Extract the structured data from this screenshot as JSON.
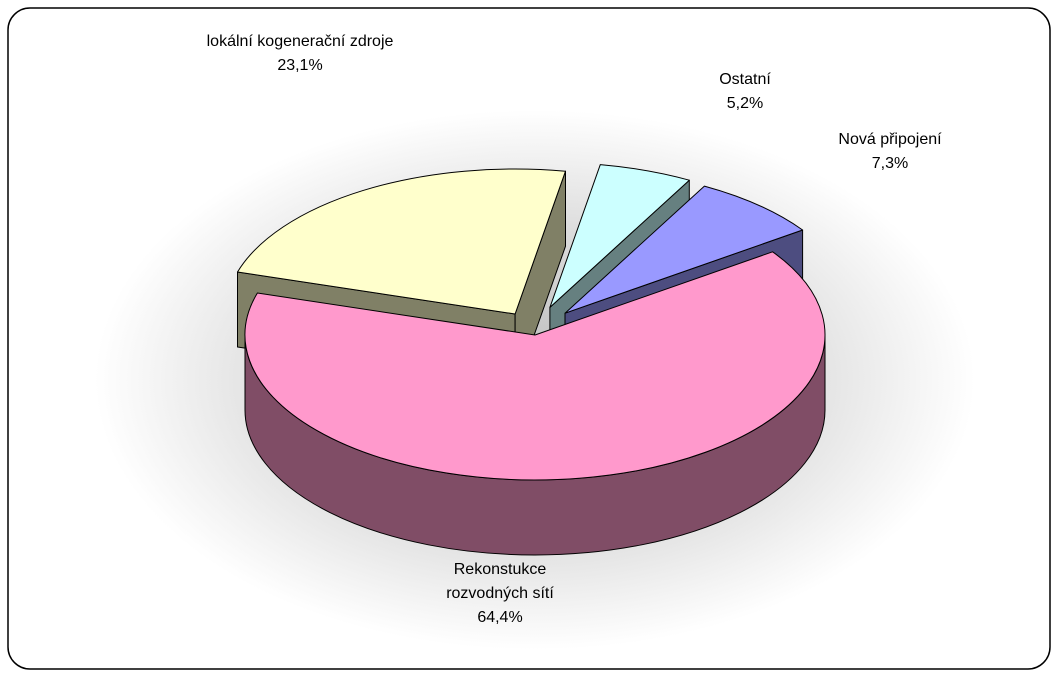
{
  "chart_data": {
    "type": "pie",
    "categories": [
      "Ostatní",
      "Nová připojení",
      "Rekonstukce rozvodných sítí",
      "lokální kogenerační zdroje"
    ],
    "values": [
      5.2,
      7.3,
      64.4,
      23.1
    ],
    "value_labels": [
      "5,2%",
      "7,3%",
      "64,4%",
      "23,1%"
    ],
    "colors": [
      "#ccffff",
      "#9999ff",
      "#ff99cc",
      "#ffffcc"
    ],
    "three_d": true
  }
}
